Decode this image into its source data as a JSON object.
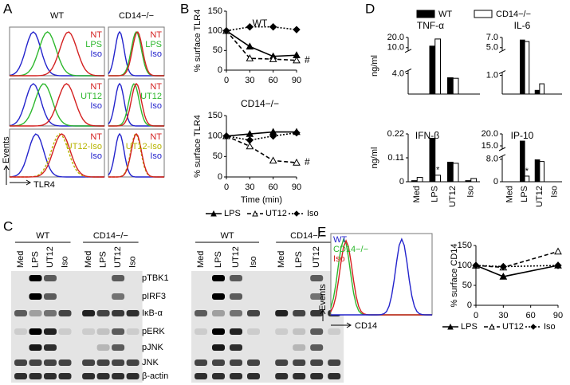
{
  "panel_labels": [
    "A",
    "B",
    "C",
    "D",
    "E"
  ],
  "panel_a": {
    "columns": [
      "WT",
      "CD14−/−"
    ],
    "rows": [
      [
        "NT",
        "LPS",
        "Iso"
      ],
      [
        "NT",
        "UT12",
        "Iso"
      ],
      [
        "NT",
        "UT12-Iso",
        "Iso"
      ]
    ],
    "y_axis": "Events",
    "x_axis": "TLR4"
  },
  "panel_c": {
    "blots": [
      {
        "groups": [
          "WT",
          "CD14−/−"
        ],
        "lanes": [
          "Med",
          "LPS",
          "UT12",
          "Iso",
          "Med",
          "LPS",
          "UT12",
          "Iso"
        ]
      },
      {
        "groups": [
          "WT",
          "CD14−/−"
        ],
        "lanes": [
          "Med",
          "LPS",
          "UT12",
          "Iso",
          "Med",
          "LPS",
          "UT12",
          "Iso"
        ]
      }
    ],
    "proteins": [
      "pTBK1",
      "pIRF3",
      "IκB-α",
      "pERK",
      "pJNK",
      "JNK",
      "β-actin"
    ]
  },
  "panel_e": {
    "legend": [
      "WT",
      "CD14−/−",
      "Iso"
    ],
    "y_axis": "Events",
    "x_axis": "CD14"
  },
  "chart_data": [
    {
      "type": "line",
      "title": "WT",
      "y_label": "% surface TLR4",
      "x": [
        0,
        30,
        60,
        90
      ],
      "xlim": [
        0,
        90
      ],
      "xticks": [
        0,
        30,
        60,
        90
      ],
      "ylim": [
        0,
        150
      ],
      "yticks": [
        0,
        50,
        100,
        150
      ],
      "annotation": "#",
      "series": [
        {
          "color": "#000000",
          "line_style": "solid",
          "marker": "filled-triangle",
          "values": [
            100,
            60,
            35,
            38
          ]
        },
        {
          "color": "#000000",
          "line_style": "dashed",
          "marker": "open-triangle",
          "values": [
            100,
            30,
            28,
            25
          ]
        },
        {
          "color": "#000000",
          "line_style": "dotted",
          "marker": "diamond",
          "values": [
            100,
            110,
            110,
            103
          ]
        }
      ]
    },
    {
      "type": "line",
      "title": "CD14−/−",
      "y_label": "% surface TLR4",
      "x_label": "Time (min)",
      "x": [
        0,
        30,
        60,
        90
      ],
      "xlim": [
        0,
        90
      ],
      "xticks": [
        0,
        30,
        60,
        90
      ],
      "ylim": [
        0,
        150
      ],
      "yticks": [
        0,
        50,
        100,
        150
      ],
      "annotation": "#",
      "series": [
        {
          "name": "LPS",
          "color": "#000000",
          "line_style": "solid",
          "marker": "filled-triangle",
          "values": [
            100,
            105,
            110,
            110
          ]
        },
        {
          "name": "UT12",
          "color": "#000000",
          "line_style": "dashed",
          "marker": "open-triangle",
          "values": [
            100,
            75,
            40,
            35
          ]
        },
        {
          "name": "Iso",
          "color": "#000000",
          "line_style": "dotted",
          "marker": "diamond",
          "values": [
            100,
            90,
            100,
            108
          ]
        }
      ]
    },
    {
      "type": "bar",
      "title": "TNF-α",
      "y_label": "ng/ml",
      "categories": [
        null,
        null,
        null,
        null
      ],
      "ylim": [
        0,
        20
      ],
      "ybreak": [
        4,
        10
      ],
      "yticks": [
        {
          "value": 4,
          "label": "4.0"
        },
        {
          "value": 10,
          "label": "10.0"
        },
        {
          "value": 20,
          "label": "20.0"
        }
      ],
      "series": [
        {
          "name": "WT",
          "color": "#000000",
          "values": [
            0,
            11.5,
            3.2,
            0
          ]
        },
        {
          "name": "CD14−/−",
          "color": "#ffffff",
          "values": [
            0,
            18.5,
            3.1,
            0
          ]
        }
      ]
    },
    {
      "type": "bar",
      "title": "IL-6",
      "categories": [
        null,
        null,
        null,
        null
      ],
      "ylim": [
        0,
        7
      ],
      "ybreak": [
        1,
        5
      ],
      "yticks": [
        {
          "value": 1,
          "label": "1.0"
        },
        {
          "value": 5,
          "label": "5.0"
        },
        {
          "value": 7,
          "label": "7.0"
        }
      ],
      "series": [
        {
          "color": "#000000",
          "values": [
            0,
            6.5,
            0.2,
            0
          ]
        },
        {
          "color": "#ffffff",
          "values": [
            0,
            6.2,
            0.55,
            0
          ]
        }
      ]
    },
    {
      "type": "bar",
      "title": "IFN-β",
      "y_label": "ng/ml",
      "categories": [
        "Med",
        "LPS",
        "UT12",
        "Iso"
      ],
      "ylim": [
        0,
        0.22
      ],
      "yticks": [
        0,
        0.11,
        0.22
      ],
      "annotation": "*",
      "series": [
        {
          "color": "#000000",
          "values": [
            0.005,
            0.2,
            0.09,
            0.005
          ]
        },
        {
          "color": "#ffffff",
          "values": [
            0.02,
            0.03,
            0.085,
            0.015
          ]
        }
      ]
    },
    {
      "type": "bar",
      "title": "IP-10",
      "categories": [
        "Med",
        "LPS",
        "UT12",
        "Iso"
      ],
      "ylim": [
        0,
        20
      ],
      "ybreak": [
        8,
        15
      ],
      "yticks": [
        0,
        {
          "value": 8,
          "label": "8.0"
        },
        {
          "value": 15,
          "label": "15.0"
        },
        {
          "value": 20,
          "label": "20.0"
        }
      ],
      "annotation": "*",
      "series": [
        {
          "color": "#000000",
          "values": [
            0,
            17,
            7.8,
            0
          ]
        },
        {
          "color": "#ffffff",
          "values": [
            0,
            2,
            7.2,
            0
          ]
        }
      ]
    },
    {
      "type": "line",
      "y_label": "% surface CD14",
      "x": [
        0,
        30,
        90
      ],
      "xlim": [
        0,
        90
      ],
      "xticks": [
        0,
        30,
        60,
        90
      ],
      "ylim": [
        0,
        150
      ],
      "yticks": [
        0,
        50,
        100,
        150
      ],
      "series": [
        {
          "name": "LPS",
          "color": "#000000",
          "line_style": "solid",
          "marker": "filled-triangle",
          "values": [
            100,
            72,
            100
          ]
        },
        {
          "name": "UT12",
          "color": "#000000",
          "line_style": "dashed",
          "marker": "open-triangle",
          "values": [
            100,
            95,
            135
          ]
        },
        {
          "name": "Iso",
          "color": "#000000",
          "line_style": "dotted",
          "marker": "diamond",
          "values": [
            100,
            97,
            100
          ]
        }
      ]
    }
  ]
}
